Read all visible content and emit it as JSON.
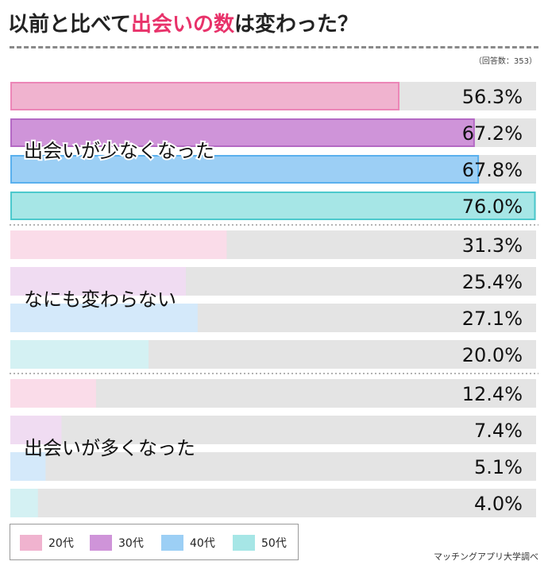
{
  "title": {
    "prefix": "以前と比べて",
    "highlight": "出会いの数",
    "suffix": "は変わった？"
  },
  "note": "（回答数：353）",
  "source": "マッチングアプリ大学調べ",
  "colors": {
    "accent": "#e8326a",
    "track": "#e4e4e4",
    "series_strong": [
      "#f0b3cf",
      "#cf94d9",
      "#9ccff5",
      "#a6e6e6"
    ],
    "series_strong_border": [
      "#ec86b7",
      "#b469c4",
      "#5ab0ee",
      "#4cc9cd"
    ],
    "series_light": [
      "#fadce9",
      "#f0dcf2",
      "#d4e9fa",
      "#d4f1f3"
    ]
  },
  "chart_data": {
    "type": "bar",
    "orientation": "horizontal",
    "xlim": [
      0,
      100
    ],
    "unit": "%",
    "series": [
      {
        "name": "20代"
      },
      {
        "name": "30代"
      },
      {
        "name": "40代"
      },
      {
        "name": "50代"
      }
    ],
    "groups": [
      {
        "label": "出会いが少なくなった",
        "values": [
          56.3,
          67.2,
          67.8,
          76.0
        ],
        "value_labels": [
          "56.3%",
          "67.2%",
          "67.8%",
          "76.0%"
        ]
      },
      {
        "label": "なにも変わらない",
        "values": [
          31.3,
          25.4,
          27.1,
          20.0
        ],
        "value_labels": [
          "31.3%",
          "25.4%",
          "27.1%",
          "20.0%"
        ]
      },
      {
        "label": "出会いが多くなった",
        "values": [
          12.4,
          7.4,
          5.1,
          4.0
        ],
        "value_labels": [
          "12.4%",
          "7.4%",
          "5.1%",
          "4.0%"
        ]
      }
    ]
  }
}
